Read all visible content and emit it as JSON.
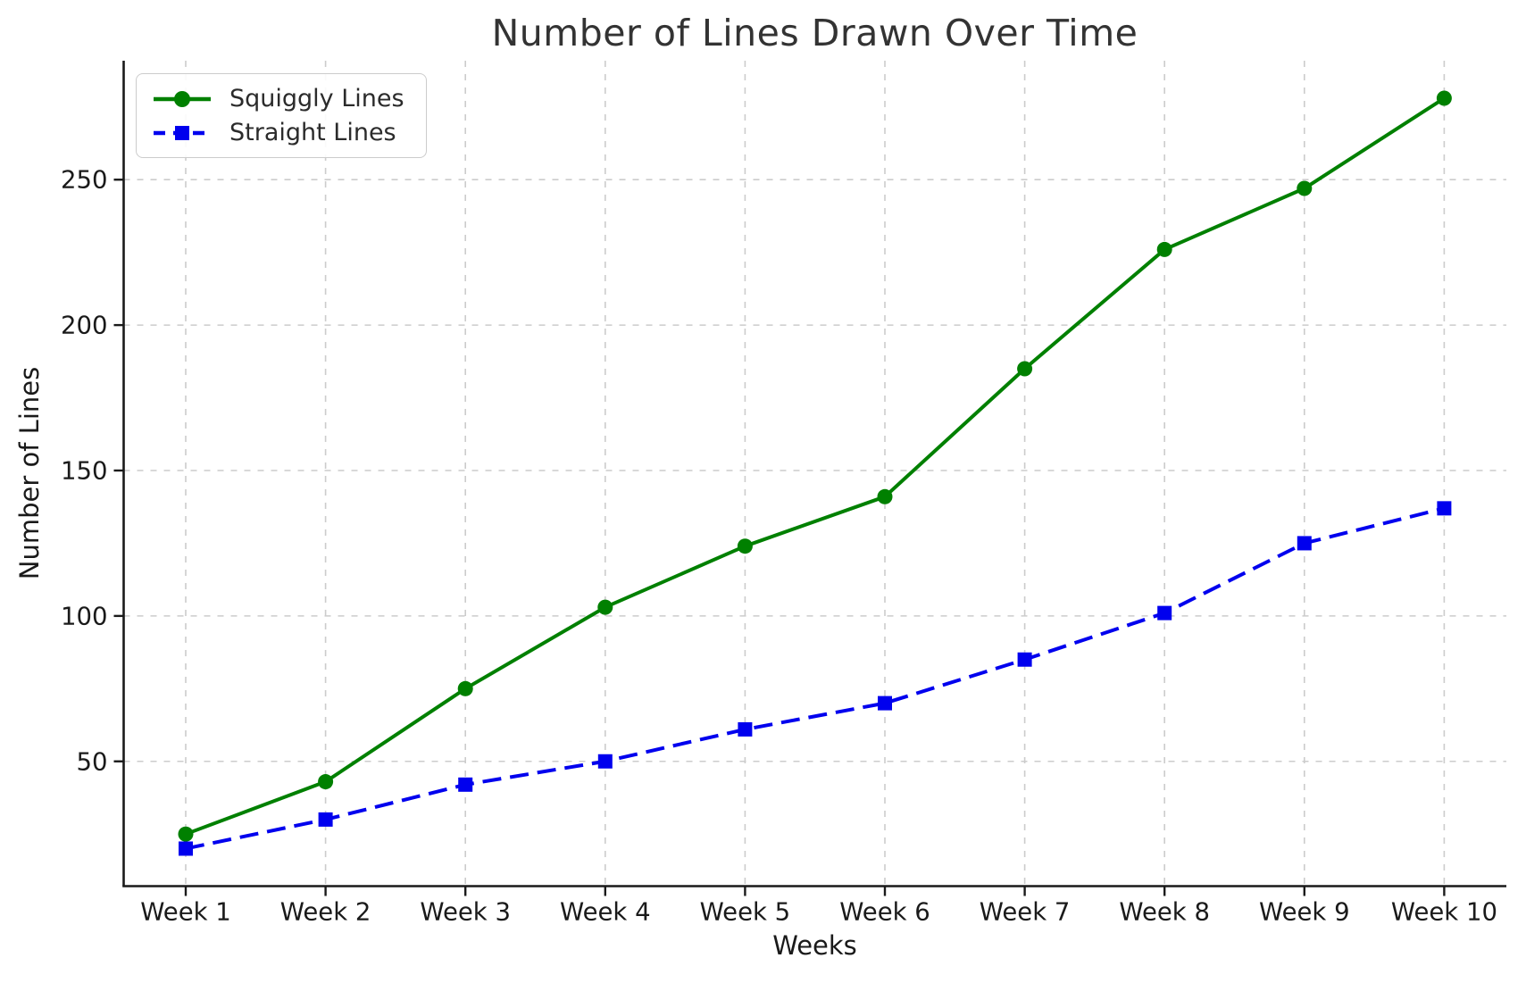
{
  "chart_data": {
    "type": "line",
    "title": "Number of Lines Drawn Over Time",
    "xlabel": "Weeks",
    "ylabel": "Number of Lines",
    "categories": [
      "Week 1",
      "Week 2",
      "Week 3",
      "Week 4",
      "Week 5",
      "Week 6",
      "Week 7",
      "Week 8",
      "Week 9",
      "Week 10"
    ],
    "series": [
      {
        "name": "Squiggly Lines",
        "color": "#008000",
        "line_style": "solid",
        "marker": "circle",
        "values": [
          25,
          43,
          75,
          103,
          124,
          141,
          185,
          226,
          247,
          278
        ]
      },
      {
        "name": "Straight Lines",
        "color": "#0000ee",
        "line_style": "dashed",
        "marker": "square",
        "values": [
          20,
          30,
          42,
          50,
          61,
          70,
          85,
          101,
          125,
          137
        ]
      }
    ],
    "yticks": [
      50,
      100,
      150,
      200,
      250
    ],
    "ylim": [
      7.1,
      290.9
    ],
    "grid": true,
    "grid_color": "#cccccc",
    "grid_style": "dashed",
    "legend_position": "upper left",
    "axis_color": "#1a1a1a",
    "tick_label_color": "#1a1a1a",
    "title_color": "#333333"
  }
}
